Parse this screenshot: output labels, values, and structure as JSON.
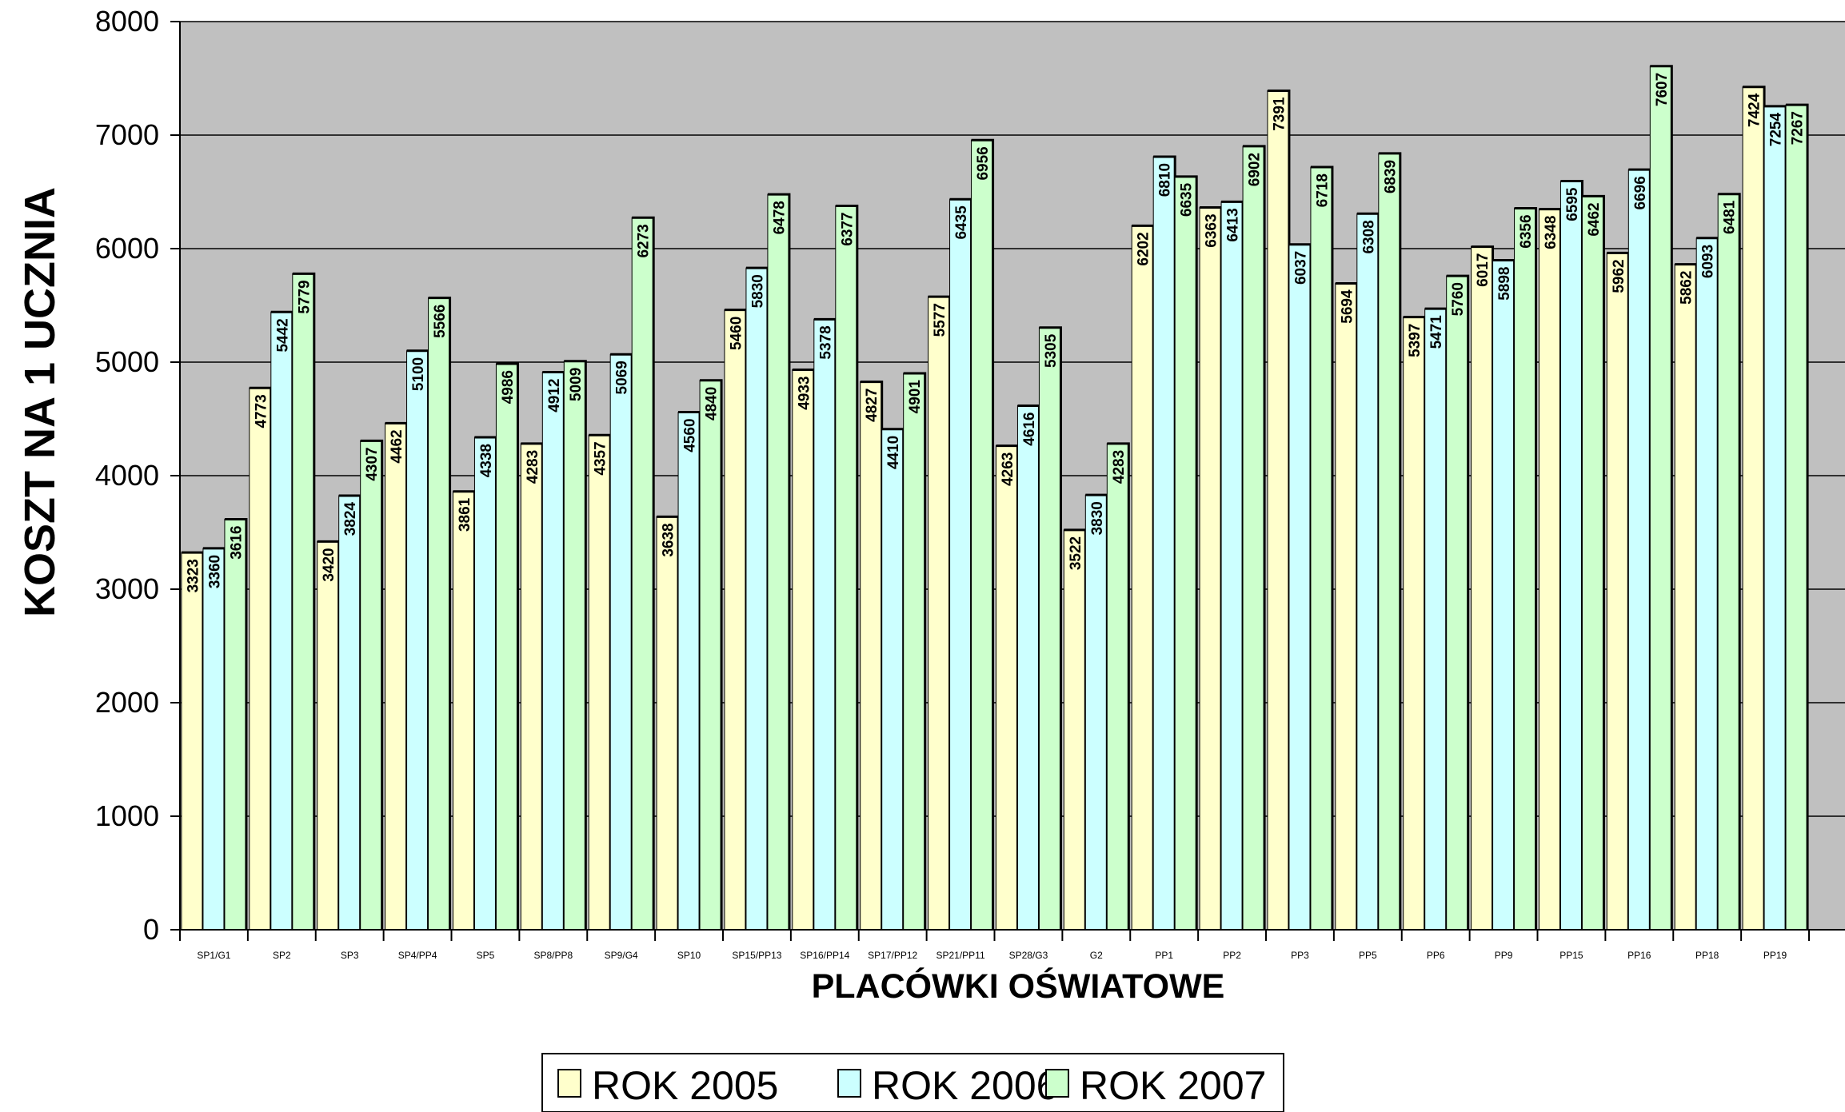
{
  "chart_data": {
    "type": "bar",
    "ylabel": "KOSZT NA 1 UCZNIA",
    "xlabel": "PLACÓWKI OŚWIATOWE",
    "ylim": [
      0,
      8000
    ],
    "yticks": [
      "0",
      "1000",
      "2000",
      "3000",
      "4000",
      "5000",
      "6000",
      "7000",
      "8000"
    ],
    "grid": true,
    "legend_position": "bottom-center",
    "categories": [
      "SP1/G1",
      "SP2",
      "SP3",
      "SP4/PP4",
      "SP5",
      "SP8/PP8",
      "SP9/G4",
      "SP10",
      "SP15/PP13",
      "SP16/PP14",
      "SP17/PP12",
      "SP21/PP11",
      "SP28/G3",
      "G2",
      "PP1",
      "PP2",
      "PP3",
      "PP5",
      "PP6",
      "PP9",
      "PP15",
      "PP16",
      "PP18",
      "PP19"
    ],
    "series": [
      {
        "name": "ROK 2005",
        "color": "#ffffcc",
        "values": [
          3323,
          4773,
          3420,
          4462,
          3861,
          4283,
          4357,
          3638,
          5460,
          4933,
          4827,
          5577,
          4263,
          3522,
          6202,
          6363,
          7391,
          5694,
          5397,
          6017,
          6348,
          5962,
          5862,
          7424
        ]
      },
      {
        "name": "ROK 2006",
        "color": "#ccffff",
        "values": [
          3360,
          5442,
          3824,
          5100,
          4338,
          4912,
          5069,
          4560,
          5830,
          5378,
          4410,
          6435,
          4616,
          3830,
          6810,
          6413,
          6037,
          6308,
          5471,
          5898,
          6595,
          6696,
          6093,
          7254
        ]
      },
      {
        "name": "ROK 2007",
        "color": "#ccffcc",
        "values": [
          3616,
          5779,
          4307,
          5566,
          4986,
          5009,
          6273,
          4840,
          6478,
          6377,
          4901,
          6956,
          5305,
          4283,
          6635,
          6902,
          6718,
          6839,
          5760,
          6356,
          6462,
          7607,
          6481,
          7267
        ]
      }
    ],
    "plot_background": "#c0c0c0"
  }
}
